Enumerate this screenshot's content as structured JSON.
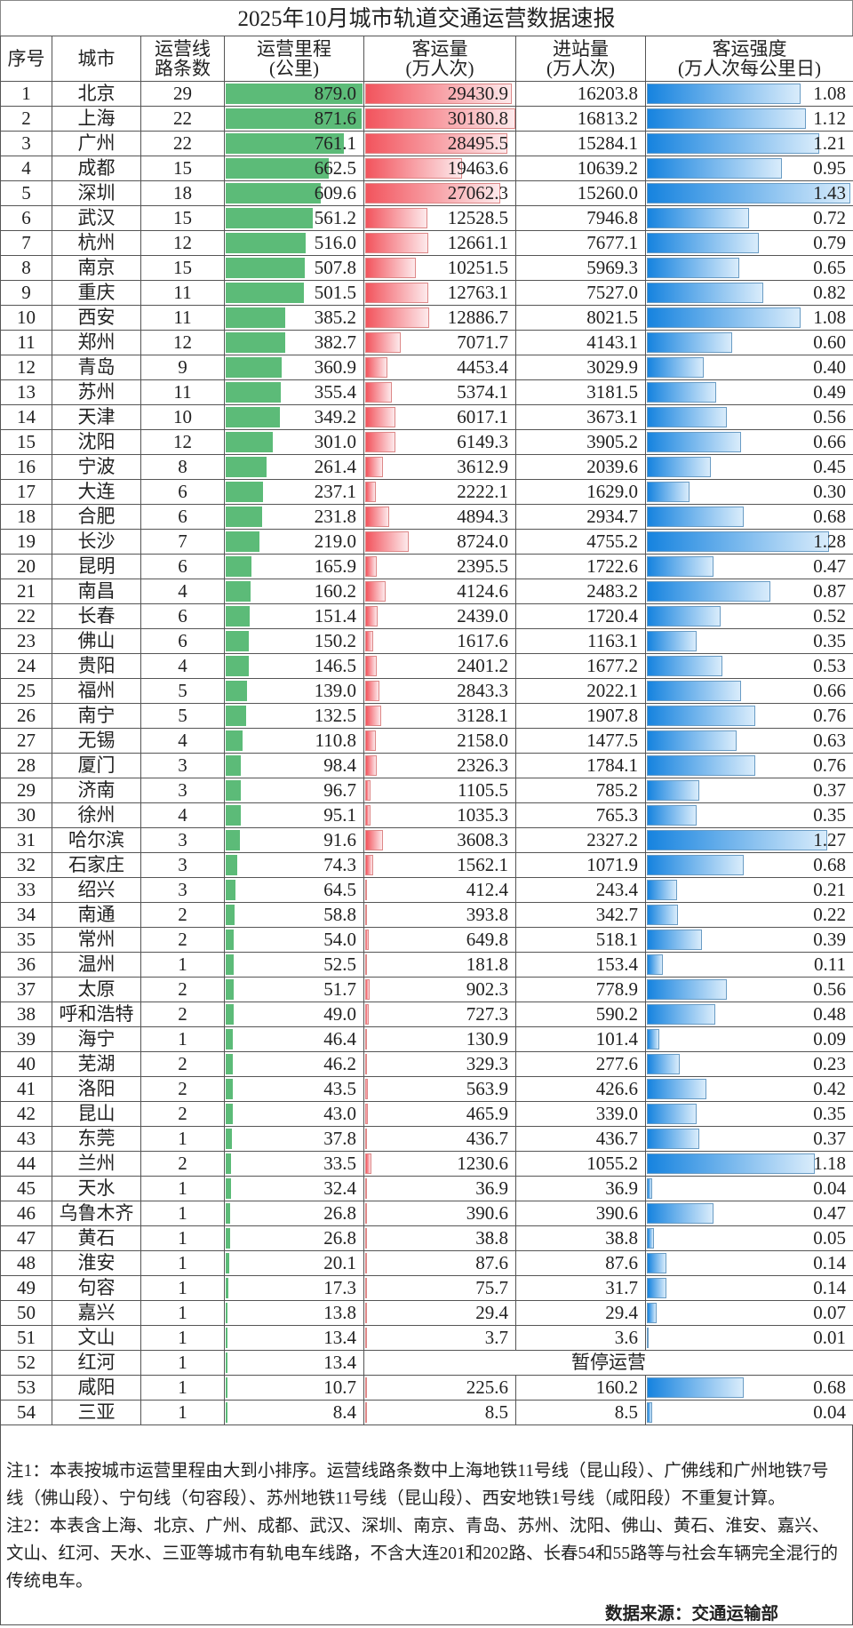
{
  "title": "2025年10月城市轨道交通运营数据速报",
  "headers": {
    "no": "序号",
    "city": "城市",
    "lines": [
      "运营线",
      "路条数"
    ],
    "km": [
      "运营里程",
      "(公里)"
    ],
    "ridership": [
      "客运量",
      "(万人次)"
    ],
    "entries": [
      "进站量",
      "(万人次)"
    ],
    "intensity": [
      "客运强度",
      "(万人次每公里日)"
    ]
  },
  "colors": {
    "km_bar": "#5cbb78",
    "ridership_bar": "#f2545d",
    "intensity_bar": "#1683df"
  },
  "rows": [
    {
      "no": "1",
      "city": "北京",
      "lines": "29",
      "km": "879.0",
      "ridership": "29430.9",
      "entries": "16203.8",
      "intensity": "1.08"
    },
    {
      "no": "2",
      "city": "上海",
      "lines": "22",
      "km": "871.6",
      "ridership": "30180.8",
      "entries": "16813.2",
      "intensity": "1.12"
    },
    {
      "no": "3",
      "city": "广州",
      "lines": "22",
      "km": "761.1",
      "ridership": "28495.5",
      "entries": "15284.1",
      "intensity": "1.21"
    },
    {
      "no": "4",
      "city": "成都",
      "lines": "15",
      "km": "662.5",
      "ridership": "19463.6",
      "entries": "10639.2",
      "intensity": "0.95"
    },
    {
      "no": "5",
      "city": "深圳",
      "lines": "18",
      "km": "609.6",
      "ridership": "27062.3",
      "entries": "15260.0",
      "intensity": "1.43"
    },
    {
      "no": "6",
      "city": "武汉",
      "lines": "15",
      "km": "561.2",
      "ridership": "12528.5",
      "entries": "7946.8",
      "intensity": "0.72"
    },
    {
      "no": "7",
      "city": "杭州",
      "lines": "12",
      "km": "516.0",
      "ridership": "12661.1",
      "entries": "7677.1",
      "intensity": "0.79"
    },
    {
      "no": "8",
      "city": "南京",
      "lines": "15",
      "km": "507.8",
      "ridership": "10251.5",
      "entries": "5969.3",
      "intensity": "0.65"
    },
    {
      "no": "9",
      "city": "重庆",
      "lines": "11",
      "km": "501.5",
      "ridership": "12763.1",
      "entries": "7527.0",
      "intensity": "0.82"
    },
    {
      "no": "10",
      "city": "西安",
      "lines": "11",
      "km": "385.2",
      "ridership": "12886.7",
      "entries": "8021.5",
      "intensity": "1.08"
    },
    {
      "no": "11",
      "city": "郑州",
      "lines": "12",
      "km": "382.7",
      "ridership": "7071.7",
      "entries": "4143.1",
      "intensity": "0.60"
    },
    {
      "no": "12",
      "city": "青岛",
      "lines": "9",
      "km": "360.9",
      "ridership": "4453.4",
      "entries": "3029.9",
      "intensity": "0.40"
    },
    {
      "no": "13",
      "city": "苏州",
      "lines": "11",
      "km": "355.4",
      "ridership": "5374.1",
      "entries": "3181.5",
      "intensity": "0.49"
    },
    {
      "no": "14",
      "city": "天津",
      "lines": "10",
      "km": "349.2",
      "ridership": "6017.1",
      "entries": "3673.1",
      "intensity": "0.56"
    },
    {
      "no": "15",
      "city": "沈阳",
      "lines": "12",
      "km": "301.0",
      "ridership": "6149.3",
      "entries": "3905.2",
      "intensity": "0.66"
    },
    {
      "no": "16",
      "city": "宁波",
      "lines": "8",
      "km": "261.4",
      "ridership": "3612.9",
      "entries": "2039.6",
      "intensity": "0.45"
    },
    {
      "no": "17",
      "city": "大连",
      "lines": "6",
      "km": "237.1",
      "ridership": "2222.1",
      "entries": "1629.0",
      "intensity": "0.30"
    },
    {
      "no": "18",
      "city": "合肥",
      "lines": "6",
      "km": "231.8",
      "ridership": "4894.3",
      "entries": "2934.7",
      "intensity": "0.68"
    },
    {
      "no": "19",
      "city": "长沙",
      "lines": "7",
      "km": "219.0",
      "ridership": "8724.0",
      "entries": "4755.2",
      "intensity": "1.28"
    },
    {
      "no": "20",
      "city": "昆明",
      "lines": "6",
      "km": "165.9",
      "ridership": "2395.5",
      "entries": "1722.6",
      "intensity": "0.47"
    },
    {
      "no": "21",
      "city": "南昌",
      "lines": "4",
      "km": "160.2",
      "ridership": "4124.6",
      "entries": "2483.2",
      "intensity": "0.87"
    },
    {
      "no": "22",
      "city": "长春",
      "lines": "6",
      "km": "151.4",
      "ridership": "2439.0",
      "entries": "1720.4",
      "intensity": "0.52"
    },
    {
      "no": "23",
      "city": "佛山",
      "lines": "6",
      "km": "150.2",
      "ridership": "1617.6",
      "entries": "1163.1",
      "intensity": "0.35"
    },
    {
      "no": "24",
      "city": "贵阳",
      "lines": "4",
      "km": "146.5",
      "ridership": "2401.2",
      "entries": "1677.2",
      "intensity": "0.53"
    },
    {
      "no": "25",
      "city": "福州",
      "lines": "5",
      "km": "139.0",
      "ridership": "2843.3",
      "entries": "2022.1",
      "intensity": "0.66"
    },
    {
      "no": "26",
      "city": "南宁",
      "lines": "5",
      "km": "132.5",
      "ridership": "3128.1",
      "entries": "1907.8",
      "intensity": "0.76"
    },
    {
      "no": "27",
      "city": "无锡",
      "lines": "4",
      "km": "110.8",
      "ridership": "2158.0",
      "entries": "1477.5",
      "intensity": "0.63"
    },
    {
      "no": "28",
      "city": "厦门",
      "lines": "3",
      "km": "98.4",
      "ridership": "2326.3",
      "entries": "1784.1",
      "intensity": "0.76"
    },
    {
      "no": "29",
      "city": "济南",
      "lines": "3",
      "km": "96.7",
      "ridership": "1105.5",
      "entries": "785.2",
      "intensity": "0.37"
    },
    {
      "no": "30",
      "city": "徐州",
      "lines": "4",
      "km": "95.1",
      "ridership": "1035.3",
      "entries": "765.3",
      "intensity": "0.35"
    },
    {
      "no": "31",
      "city": "哈尔滨",
      "lines": "3",
      "km": "91.6",
      "ridership": "3608.3",
      "entries": "2327.2",
      "intensity": "1.27"
    },
    {
      "no": "32",
      "city": "石家庄",
      "lines": "3",
      "km": "74.3",
      "ridership": "1562.1",
      "entries": "1071.9",
      "intensity": "0.68"
    },
    {
      "no": "33",
      "city": "绍兴",
      "lines": "3",
      "km": "64.5",
      "ridership": "412.4",
      "entries": "243.4",
      "intensity": "0.21"
    },
    {
      "no": "34",
      "city": "南通",
      "lines": "2",
      "km": "58.8",
      "ridership": "393.8",
      "entries": "342.7",
      "intensity": "0.22"
    },
    {
      "no": "35",
      "city": "常州",
      "lines": "2",
      "km": "54.0",
      "ridership": "649.8",
      "entries": "518.1",
      "intensity": "0.39"
    },
    {
      "no": "36",
      "city": "温州",
      "lines": "1",
      "km": "52.5",
      "ridership": "181.8",
      "entries": "153.4",
      "intensity": "0.11"
    },
    {
      "no": "37",
      "city": "太原",
      "lines": "2",
      "km": "51.7",
      "ridership": "902.3",
      "entries": "778.9",
      "intensity": "0.56"
    },
    {
      "no": "38",
      "city": "呼和浩特",
      "lines": "2",
      "km": "49.0",
      "ridership": "727.3",
      "entries": "590.2",
      "intensity": "0.48"
    },
    {
      "no": "39",
      "city": "海宁",
      "lines": "1",
      "km": "46.4",
      "ridership": "130.9",
      "entries": "101.4",
      "intensity": "0.09"
    },
    {
      "no": "40",
      "city": "芜湖",
      "lines": "2",
      "km": "46.2",
      "ridership": "329.3",
      "entries": "277.6",
      "intensity": "0.23"
    },
    {
      "no": "41",
      "city": "洛阳",
      "lines": "2",
      "km": "43.5",
      "ridership": "563.9",
      "entries": "426.6",
      "intensity": "0.42"
    },
    {
      "no": "42",
      "city": "昆山",
      "lines": "2",
      "km": "43.0",
      "ridership": "465.9",
      "entries": "339.0",
      "intensity": "0.35"
    },
    {
      "no": "43",
      "city": "东莞",
      "lines": "1",
      "km": "37.8",
      "ridership": "436.7",
      "entries": "436.7",
      "intensity": "0.37"
    },
    {
      "no": "44",
      "city": "兰州",
      "lines": "2",
      "km": "33.5",
      "ridership": "1230.6",
      "entries": "1055.2",
      "intensity": "1.18"
    },
    {
      "no": "45",
      "city": "天水",
      "lines": "1",
      "km": "32.4",
      "ridership": "36.9",
      "entries": "36.9",
      "intensity": "0.04"
    },
    {
      "no": "46",
      "city": "乌鲁木齐",
      "lines": "1",
      "km": "26.8",
      "ridership": "390.6",
      "entries": "390.6",
      "intensity": "0.47"
    },
    {
      "no": "47",
      "city": "黄石",
      "lines": "1",
      "km": "26.8",
      "ridership": "38.8",
      "entries": "38.8",
      "intensity": "0.05"
    },
    {
      "no": "48",
      "city": "淮安",
      "lines": "1",
      "km": "20.1",
      "ridership": "87.6",
      "entries": "87.6",
      "intensity": "0.14"
    },
    {
      "no": "49",
      "city": "句容",
      "lines": "1",
      "km": "17.3",
      "ridership": "75.7",
      "entries": "31.7",
      "intensity": "0.14"
    },
    {
      "no": "50",
      "city": "嘉兴",
      "lines": "1",
      "km": "13.8",
      "ridership": "29.4",
      "entries": "29.4",
      "intensity": "0.07"
    },
    {
      "no": "51",
      "city": "文山",
      "lines": "1",
      "km": "13.4",
      "ridership": "3.7",
      "entries": "3.6",
      "intensity": "0.01"
    },
    {
      "no": "52",
      "city": "红河",
      "lines": "1",
      "km": "13.4",
      "status": "暂停运营"
    },
    {
      "no": "53",
      "city": "咸阳",
      "lines": "1",
      "km": "10.7",
      "ridership": "225.6",
      "entries": "160.2",
      "intensity": "0.68"
    },
    {
      "no": "54",
      "city": "三亚",
      "lines": "1",
      "km": "8.4",
      "ridership": "8.5",
      "entries": "8.5",
      "intensity": "0.04"
    }
  ],
  "notes": {
    "note1": "注1：本表按城市运营里程由大到小排序。运营线路条数中上海地铁11号线（昆山段）、广佛线和广州地铁7号线（佛山段）、宁句线（句容段）、苏州地铁11号线（昆山段）、西安地铁1号线（咸阳段）不重复计算。",
    "note2": "注2：本表含上海、北京、广州、成都、武汉、深圳、南京、青岛、苏州、沈阳、佛山、黄石、淮安、嘉兴、文山、红河、天水、三亚等城市有轨电车线路，不含大连201和202路、长春54和55路等与社会车辆完全混行的传统电车。",
    "source": "数据来源：交通运输部"
  }
}
